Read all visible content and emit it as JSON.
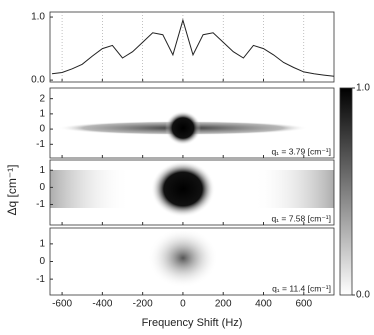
{
  "chart_data": [
    {
      "type": "line",
      "x": [
        -650,
        -600,
        -550,
        -500,
        -450,
        -400,
        -350,
        -300,
        -250,
        -200,
        -150,
        -100,
        -50,
        0,
        50,
        100,
        150,
        200,
        250,
        300,
        350,
        400,
        450,
        500,
        550,
        600,
        650,
        700,
        750
      ],
      "values": [
        0.1,
        0.12,
        0.18,
        0.25,
        0.38,
        0.5,
        0.55,
        0.35,
        0.45,
        0.6,
        0.75,
        0.72,
        0.4,
        0.95,
        0.4,
        0.72,
        0.75,
        0.6,
        0.45,
        0.35,
        0.55,
        0.5,
        0.4,
        0.28,
        0.2,
        0.13,
        0.1,
        0.08,
        0.06
      ],
      "color": "#222222",
      "ylim": [
        -0.03,
        1.08
      ],
      "yticks": [
        {
          "value": 0,
          "label": "0.0"
        },
        {
          "value": 1,
          "label": "1.0"
        }
      ],
      "grid": true
    },
    {
      "type": "heatmap",
      "annotation": "q₁ = 3.79 [cm⁻¹]",
      "ylabel": "Δq [cm⁻¹]",
      "ylim": [
        -1.9,
        2.7
      ],
      "yticks": [
        2,
        1,
        0,
        -1
      ],
      "colorbar": {
        "lim": [
          0,
          1
        ],
        "ticks": [
          {
            "value": 0,
            "label": "0.0"
          },
          {
            "value": 1,
            "label": "1.0"
          }
        ]
      }
    },
    {
      "type": "heatmap",
      "annotation": "q₁ = 7.58 [cm⁻¹]",
      "ylim": [
        -2.2,
        1.6
      ],
      "yticks": [
        1,
        0,
        -1
      ]
    },
    {
      "type": "heatmap",
      "annotation": "q₁ = 11.4 [cm⁻¹]",
      "ylim": [
        -1.9,
        1.9
      ],
      "yticks": [
        1,
        0,
        -1
      ],
      "xlim": [
        -660,
        750
      ],
      "xticks": [
        -600,
        -400,
        -200,
        0,
        200,
        400,
        600
      ],
      "xlabel": "Frequency Shift (Hz)"
    }
  ]
}
